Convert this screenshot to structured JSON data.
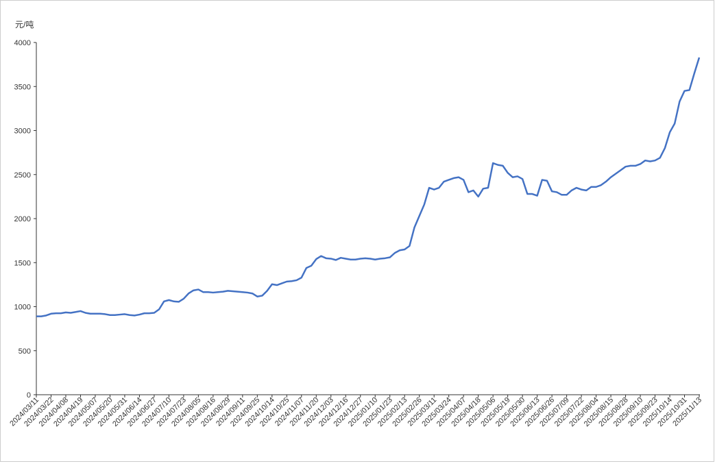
{
  "chart_data": {
    "type": "line",
    "ylabel": "元/吨",
    "categories": [
      "2024/03/11",
      null,
      null,
      "2024/03/22",
      null,
      null,
      "2024/04/08",
      null,
      null,
      "2024/04/19",
      null,
      null,
      "2024/05/07",
      null,
      null,
      "2024/05/20",
      null,
      null,
      "2024/05/31",
      null,
      null,
      "2024/06/14",
      null,
      null,
      "2024/06/27",
      null,
      null,
      "2024/07/10",
      null,
      null,
      "2024/07/23",
      null,
      null,
      "2024/08/05",
      null,
      null,
      "2024/08/16",
      null,
      null,
      "2024/08/29",
      null,
      null,
      "2024/09/11",
      null,
      null,
      "2024/09/25",
      null,
      null,
      "2024/10/14",
      null,
      null,
      "2024/10/25",
      null,
      null,
      "2024/11/07",
      null,
      null,
      "2024/11/20",
      null,
      null,
      "2024/12/03",
      null,
      null,
      "2024/12/16",
      null,
      null,
      "2024/12/27",
      null,
      null,
      "2025/01/10",
      null,
      null,
      "2025/01/23",
      null,
      null,
      "2025/02/13",
      null,
      null,
      "2025/02/26",
      null,
      null,
      "2025/03/11",
      null,
      null,
      "2025/03/24",
      null,
      null,
      "2025/04/07",
      null,
      null,
      "2025/04/18",
      null,
      null,
      "2025/05/06",
      null,
      null,
      "2025/05/19",
      null,
      null,
      "2025/05/30",
      null,
      null,
      "2025/06/13",
      null,
      null,
      "2025/06/26",
      null,
      null,
      "2025/07/09",
      null,
      null,
      "2025/07/22",
      null,
      null,
      "2025/08/04",
      null,
      null,
      "2025/08/15",
      null,
      null,
      "2025/08/28",
      null,
      null,
      "2025/09/10",
      null,
      null,
      "2025/09/23",
      null,
      null,
      "2025/10/14",
      null,
      null,
      "2025/10/31",
      null,
      null,
      "2025/11/13"
    ],
    "values": [
      890,
      890,
      900,
      920,
      925,
      925,
      935,
      930,
      940,
      950,
      930,
      920,
      920,
      920,
      915,
      905,
      905,
      910,
      915,
      905,
      900,
      910,
      925,
      925,
      930,
      970,
      1060,
      1075,
      1060,
      1055,
      1090,
      1150,
      1185,
      1195,
      1165,
      1165,
      1160,
      1165,
      1170,
      1180,
      1175,
      1170,
      1165,
      1160,
      1150,
      1115,
      1125,
      1180,
      1255,
      1245,
      1265,
      1285,
      1290,
      1300,
      1330,
      1440,
      1465,
      1540,
      1575,
      1550,
      1545,
      1530,
      1555,
      1545,
      1535,
      1535,
      1545,
      1550,
      1545,
      1535,
      1545,
      1550,
      1560,
      1610,
      1640,
      1650,
      1690,
      1900,
      2030,
      2160,
      2350,
      2330,
      2350,
      2420,
      2440,
      2460,
      2470,
      2440,
      2300,
      2320,
      2250,
      2340,
      2350,
      2630,
      2610,
      2600,
      2520,
      2470,
      2480,
      2450,
      2280,
      2280,
      2260,
      2440,
      2430,
      2310,
      2300,
      2270,
      2270,
      2320,
      2350,
      2330,
      2320,
      2360,
      2360,
      2380,
      2420,
      2470,
      2510,
      2550,
      2590,
      2600,
      2600,
      2620,
      2660,
      2650,
      2660,
      2690,
      2800,
      2980,
      3080,
      3330,
      3450,
      3460,
      3650,
      3830
    ],
    "color": "#4472c4",
    "ylim": [
      0,
      4000
    ],
    "yticks": [
      0,
      500,
      1000,
      1500,
      2000,
      2500,
      3000,
      3500,
      4000
    ],
    "grid": false
  }
}
